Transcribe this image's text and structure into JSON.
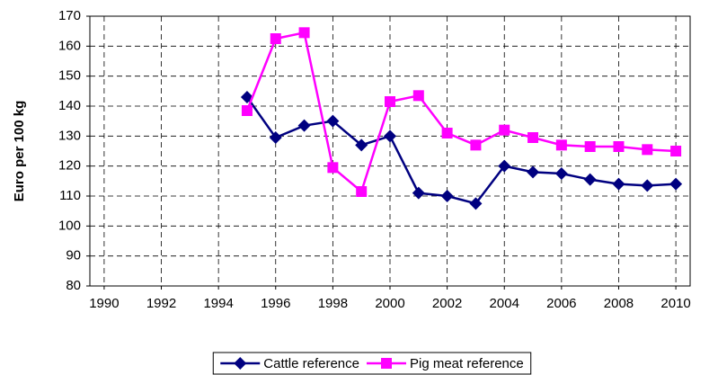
{
  "chart_data": {
    "type": "line",
    "y_label": "Euro per 100 kg",
    "x": [
      1995,
      1996,
      1997,
      1998,
      1999,
      2000,
      2001,
      2002,
      2003,
      2004,
      2005,
      2006,
      2007,
      2008,
      2009,
      2010
    ],
    "series": [
      {
        "name": "Cattle reference",
        "color": "#000080",
        "marker": "diamond",
        "values": [
          143,
          129.5,
          133.5,
          135,
          127,
          130,
          111,
          110,
          107.5,
          120,
          118,
          117.5,
          115.5,
          114,
          113.5,
          114
        ]
      },
      {
        "name": "Pig meat reference",
        "color": "#ff00ff",
        "marker": "square",
        "values": [
          138.5,
          162.5,
          164.5,
          119.5,
          111.5,
          141.5,
          143.5,
          131,
          127,
          132,
          129.5,
          127,
          126.5,
          126.5,
          125.5,
          125
        ]
      }
    ],
    "xlim": [
      1989.5,
      2010.5
    ],
    "xticks": [
      1990,
      1992,
      1994,
      1996,
      1998,
      2000,
      2002,
      2004,
      2006,
      2008,
      2010
    ],
    "ylim": [
      80,
      170
    ],
    "yticks": [
      80,
      90,
      100,
      110,
      120,
      130,
      140,
      150,
      160,
      170
    ],
    "grid": true,
    "legend": "bottom"
  }
}
